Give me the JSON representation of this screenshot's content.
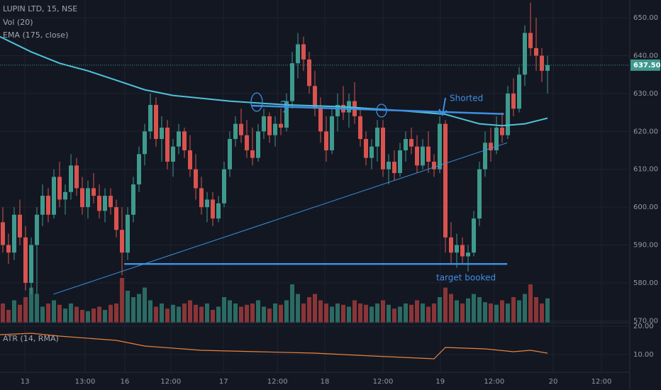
{
  "chart_data": {
    "type": "candlestick",
    "title": "LUPIN LTD, 15, NSE",
    "volume_label": "Vol (20)",
    "ema_label": "EMA (175, close)",
    "atr_label": "ATR (14, RMA)",
    "up_color": "#3f9a8e",
    "down_color": "#d9534f",
    "vol_up_color": "#2b6b63",
    "vol_down_color": "#8a3538",
    "ema_color": "#4fc3d9",
    "atr_color": "#e9823a",
    "drawing_color": "#3d8fe0",
    "grid": true,
    "xlim": [
      -0.5,
      110.5
    ],
    "xticks": [
      {
        "value": 3.9,
        "label": "13"
      },
      {
        "value": 14.5,
        "label": "13:00"
      },
      {
        "value": 21.5,
        "label": "16"
      },
      {
        "value": 29.6,
        "label": "12:00"
      },
      {
        "value": 38.9,
        "label": "17"
      },
      {
        "value": 48.4,
        "label": "12:00"
      },
      {
        "value": 56.75,
        "label": "18"
      },
      {
        "value": 67,
        "label": "12:00"
      },
      {
        "value": 77.1,
        "label": "19"
      },
      {
        "value": 86.6,
        "label": "12:00"
      },
      {
        "value": 97,
        "label": "20"
      },
      {
        "value": 105.5,
        "label": "12:00"
      }
    ],
    "ylim": [
      569.5,
      654.7
    ],
    "yticks": [
      {
        "value": 570,
        "label": "570.00"
      },
      {
        "value": 580,
        "label": "580.00"
      },
      {
        "value": 590,
        "label": "590.00"
      },
      {
        "value": 600,
        "label": "600.00"
      },
      {
        "value": 610,
        "label": "610.00"
      },
      {
        "value": 620,
        "label": "620.00"
      },
      {
        "value": 630,
        "label": "630.00"
      },
      {
        "value": 640,
        "label": "640.00"
      },
      {
        "value": 650,
        "label": "650.00"
      }
    ],
    "last_price": {
      "value": 637.5,
      "label": "637.50"
    },
    "candles": [
      [
        596,
        600,
        588,
        590
      ],
      [
        590,
        593,
        585,
        588
      ],
      [
        588,
        600,
        586,
        598
      ],
      [
        598,
        602,
        590,
        592
      ],
      [
        592,
        595,
        578,
        580
      ],
      [
        580,
        592,
        577,
        590
      ],
      [
        590,
        600,
        577,
        598
      ],
      [
        598,
        606,
        595,
        603
      ],
      [
        603,
        605,
        596,
        598
      ],
      [
        598,
        610,
        597,
        608
      ],
      [
        608,
        612,
        600,
        602
      ],
      [
        602,
        606,
        598,
        604
      ],
      [
        604,
        614,
        602,
        611
      ],
      [
        611,
        613,
        603,
        605
      ],
      [
        605,
        608,
        598,
        600
      ],
      [
        600,
        607,
        597,
        605
      ],
      [
        605,
        609,
        601,
        603
      ],
      [
        603,
        606,
        597,
        599
      ],
      [
        599,
        605,
        596,
        603
      ],
      [
        603,
        605,
        598,
        600
      ],
      [
        600,
        602,
        592,
        594
      ],
      [
        594,
        600,
        582,
        588
      ],
      [
        588,
        600,
        586,
        598
      ],
      [
        598,
        608,
        596,
        606
      ],
      [
        606,
        616,
        604,
        614
      ],
      [
        614,
        622,
        611,
        620
      ],
      [
        620,
        630,
        618,
        627
      ],
      [
        627,
        629,
        616,
        618
      ],
      [
        618,
        624,
        612,
        621
      ],
      [
        621,
        623,
        610,
        612
      ],
      [
        612,
        618,
        608,
        616
      ],
      [
        616,
        622,
        614,
        620
      ],
      [
        620,
        621,
        613,
        615
      ],
      [
        615,
        619,
        608,
        610
      ],
      [
        610,
        614,
        602,
        605
      ],
      [
        605,
        608,
        598,
        600
      ],
      [
        600,
        604,
        596,
        602
      ],
      [
        602,
        604,
        595,
        597
      ],
      [
        597,
        603,
        596,
        601
      ],
      [
        601,
        612,
        600,
        610
      ],
      [
        610,
        620,
        608,
        618
      ],
      [
        618,
        624,
        616,
        622
      ],
      [
        622,
        626,
        617,
        619
      ],
      [
        619,
        623,
        613,
        615
      ],
      [
        615,
        621,
        611,
        613
      ],
      [
        613,
        622,
        612,
        620
      ],
      [
        620,
        626,
        618,
        624
      ],
      [
        624,
        625,
        617,
        619
      ],
      [
        619,
        624,
        616,
        622
      ],
      [
        622,
        626,
        619,
        621
      ],
      [
        621,
        630,
        620,
        628
      ],
      [
        628,
        641,
        626,
        638
      ],
      [
        638,
        646,
        634,
        643
      ],
      [
        643,
        645,
        636,
        639
      ],
      [
        639,
        641,
        630,
        632
      ],
      [
        632,
        636,
        624,
        626
      ],
      [
        626,
        629,
        617,
        620
      ],
      [
        620,
        624,
        612,
        615
      ],
      [
        615,
        626,
        614,
        624
      ],
      [
        624,
        630,
        620,
        627
      ],
      [
        627,
        632,
        623,
        625
      ],
      [
        625,
        630,
        621,
        628
      ],
      [
        628,
        633,
        622,
        624
      ],
      [
        624,
        626,
        616,
        618
      ],
      [
        618,
        620,
        611,
        613
      ],
      [
        613,
        618,
        610,
        616
      ],
      [
        616,
        623,
        612,
        621
      ],
      [
        621,
        623,
        608,
        610
      ],
      [
        610,
        614,
        606,
        612
      ],
      [
        612,
        615,
        607,
        609
      ],
      [
        609,
        617,
        608,
        615
      ],
      [
        615,
        620,
        612,
        618
      ],
      [
        618,
        621,
        614,
        616
      ],
      [
        616,
        619,
        609,
        611
      ],
      [
        611,
        618,
        610,
        616
      ],
      [
        616,
        620,
        609,
        612
      ],
      [
        612,
        614,
        608,
        610
      ],
      [
        610,
        624,
        609,
        622
      ],
      [
        622,
        623,
        588,
        592
      ],
      [
        592,
        596,
        585,
        588
      ],
      [
        588,
        593,
        584,
        590
      ],
      [
        590,
        592,
        585,
        587
      ],
      [
        587,
        590,
        583,
        588
      ],
      [
        588,
        599,
        587,
        597
      ],
      [
        597,
        612,
        595,
        610
      ],
      [
        610,
        620,
        608,
        617
      ],
      [
        617,
        621,
        612,
        615
      ],
      [
        615,
        624,
        614,
        621
      ],
      [
        621,
        625,
        617,
        619
      ],
      [
        619,
        632,
        618,
        630
      ],
      [
        630,
        634,
        624,
        626
      ],
      [
        626,
        637,
        625,
        635
      ],
      [
        635,
        648,
        632,
        646
      ],
      [
        646,
        654,
        640,
        642
      ],
      [
        642,
        650,
        636,
        640
      ],
      [
        640,
        642,
        633,
        636
      ],
      [
        636,
        640,
        630,
        637.5
      ]
    ],
    "volumes": [
      30,
      20,
      35,
      28,
      40,
      55,
      45,
      25,
      30,
      35,
      28,
      22,
      30,
      25,
      20,
      18,
      22,
      25,
      20,
      28,
      30,
      70,
      50,
      40,
      45,
      55,
      35,
      25,
      30,
      22,
      28,
      25,
      30,
      35,
      28,
      25,
      30,
      20,
      25,
      40,
      35,
      30,
      25,
      28,
      30,
      35,
      25,
      22,
      30,
      28,
      35,
      60,
      45,
      30,
      40,
      45,
      35,
      30,
      25,
      30,
      28,
      25,
      35,
      30,
      28,
      25,
      30,
      35,
      28,
      22,
      25,
      30,
      28,
      35,
      30,
      25,
      30,
      40,
      55,
      45,
      35,
      30,
      38,
      45,
      40,
      32,
      30,
      28,
      35,
      30,
      40,
      35,
      45,
      60,
      40,
      30,
      38
    ],
    "vol_lim": [
      0,
      100
    ],
    "ema": {
      "x": [
        -0.5,
        5,
        10,
        15,
        20,
        25,
        30,
        40,
        50,
        60,
        70,
        78,
        84,
        88,
        92,
        96
      ],
      "values": [
        645,
        641,
        638,
        636,
        633.5,
        631,
        629.5,
        628,
        627,
        626.5,
        625.5,
        624.5,
        622,
        621.5,
        622,
        623.5
      ]
    },
    "atr": {
      "x": [
        -0.5,
        5,
        10,
        20,
        25,
        35,
        45,
        55,
        65,
        76,
        78,
        85,
        90,
        93,
        96
      ],
      "values": [
        17,
        17.5,
        16.5,
        15,
        13,
        11.5,
        11,
        10.5,
        9.5,
        8.5,
        12.5,
        12,
        11,
        11.5,
        10.5
      ]
    },
    "atr_ylim": [
      3.75,
      21.25
    ],
    "atr_yticks": [
      {
        "value": 10,
        "label": "10.00"
      },
      {
        "value": 20,
        "label": "20.00"
      }
    ],
    "drawings": [
      {
        "x": [
          8.9,
          88.9
        ],
        "y": [
          577,
          617
        ],
        "width": 1
      },
      {
        "x": [
          21.4,
          88.9
        ],
        "y": [
          585,
          585
        ],
        "width": 2.5
      },
      {
        "x": [
          43.9,
          88.3
        ],
        "y": [
          626.8,
          624.6
        ],
        "width": 2.5
      }
    ],
    "annotations": [
      "Shorted",
      "target booked"
    ]
  }
}
